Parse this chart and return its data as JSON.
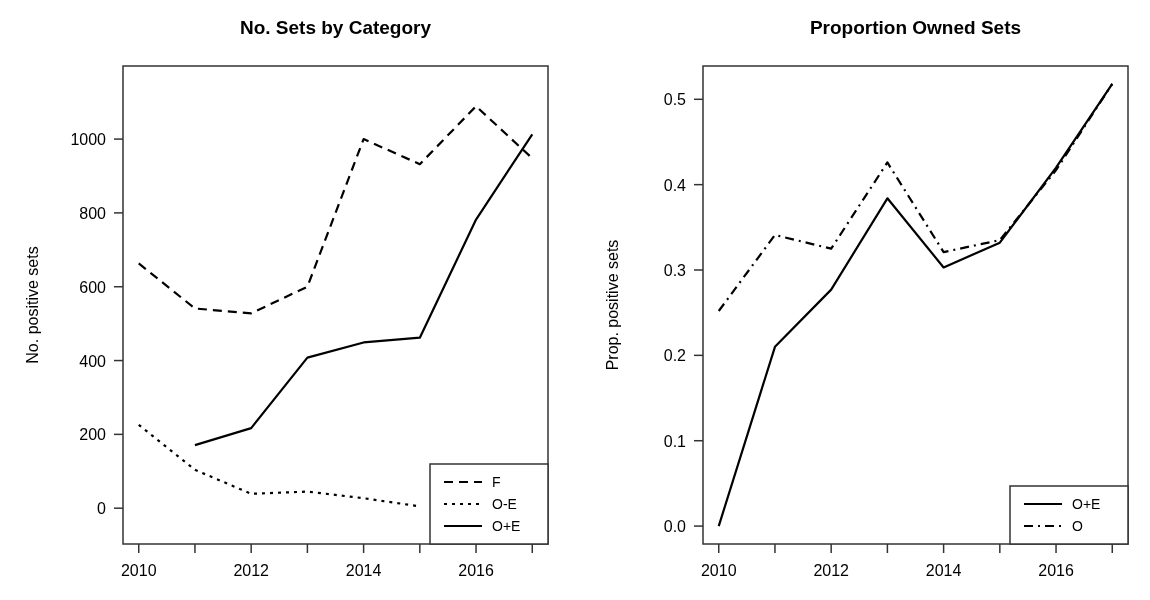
{
  "chart_data": [
    {
      "type": "line",
      "title": "No. Sets by Category",
      "ylabel": "No. positive sets",
      "x": [
        2010,
        2011,
        2012,
        2013,
        2014,
        2015,
        2016,
        2017
      ],
      "xlim": [
        2009.72,
        2017.28
      ],
      "ylim": [
        -97,
        1198
      ],
      "xticks": [
        2010,
        {
          "value": 2011,
          "label": null
        },
        2012,
        {
          "value": 2013,
          "label": null
        },
        2014,
        {
          "value": 2015,
          "label": null
        },
        2016,
        {
          "value": 2017,
          "label": null
        }
      ],
      "yticks": [
        0,
        200,
        400,
        600,
        800,
        1000
      ],
      "legend": "bottom right",
      "grid": false,
      "series": [
        {
          "name": "F",
          "color": "#000000",
          "line_style": "dashed",
          "values": [
            663,
            541,
            528,
            600,
            1000,
            932,
            1089,
            948
          ]
        },
        {
          "name": "O-E",
          "color": "#000000",
          "line_style": "dotted",
          "values": [
            226,
            104,
            39,
            45,
            27,
            5,
            null,
            null
          ]
        },
        {
          "name": "O+E",
          "color": "#000000",
          "line_style": "solid",
          "values": [
            null,
            171,
            217,
            408,
            449,
            462,
            782,
            1013
          ]
        }
      ]
    },
    {
      "type": "line",
      "title": "Proportion Owned Sets",
      "ylabel": "Prop. positive sets",
      "x": [
        2010,
        2011,
        2012,
        2013,
        2014,
        2015,
        2016,
        2017
      ],
      "xlim": [
        2009.72,
        2017.28
      ],
      "ylim": [
        -0.021,
        0.539
      ],
      "xticks": [
        2010,
        {
          "value": 2011,
          "label": null
        },
        2012,
        {
          "value": 2013,
          "label": null
        },
        2014,
        {
          "value": 2015,
          "label": null
        },
        2016,
        {
          "value": 2017,
          "label": null
        }
      ],
      "yticks": [
        {
          "value": 0,
          "label": "0.0"
        },
        0.1,
        0.2,
        0.3,
        0.4,
        0.5
      ],
      "legend": "bottom right",
      "grid": false,
      "series": [
        {
          "name": "O+E",
          "color": "#000000",
          "line_style": "solid",
          "values": [
            0,
            0.21,
            0.277,
            0.384,
            0.303,
            0.332,
            0.42,
            0.518
          ]
        },
        {
          "name": "O",
          "color": "#000000",
          "line_style": "dashdot",
          "values": [
            0.252,
            0.341,
            0.325,
            0.426,
            0.321,
            0.335,
            0.417,
            0.518
          ]
        }
      ]
    }
  ]
}
